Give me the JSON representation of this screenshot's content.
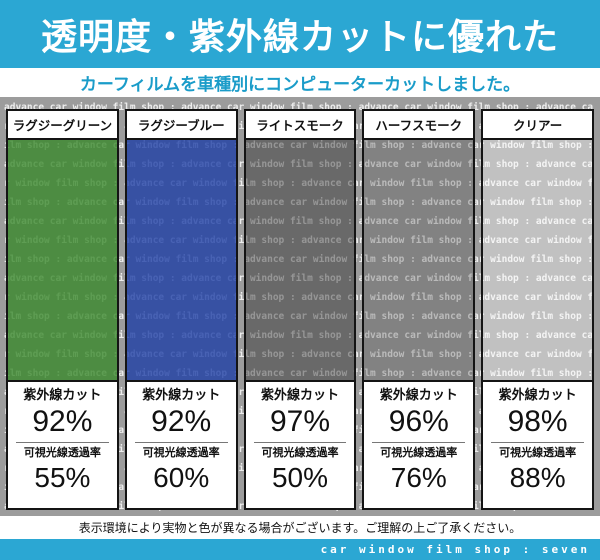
{
  "header": {
    "title": "透明度・紫外線カットに優れた",
    "subtitle": "カーフィルムを車種別にコンピューターカットしました。",
    "bg_color": "#2BA7D3",
    "subtitle_color": "#1A9CC9"
  },
  "background": {
    "pattern_text": "advance car window film shop : ",
    "base_color": "#9C9C9C",
    "text_color": "#EDEDED"
  },
  "products": [
    {
      "name": "ラグジーグリーン",
      "uv_label": "紫外線カット",
      "uv_value": "92%",
      "vlt_label": "可視光線透過率",
      "vlt_value": "55%",
      "tint": "#3A882CCC"
    },
    {
      "name": "ラグジーブルー",
      "uv_label": "紫外線カット",
      "uv_value": "92%",
      "vlt_label": "可視光線透過率",
      "vlt_value": "60%",
      "tint": "#1E3EA5CC"
    },
    {
      "name": "ライトスモーク",
      "uv_label": "紫外線カット",
      "uv_value": "97%",
      "vlt_label": "可視光線透過率",
      "vlt_value": "50%",
      "tint": "#2D2D2D73"
    },
    {
      "name": "ハーフスモーク",
      "uv_label": "紫外線カット",
      "uv_value": "96%",
      "vlt_label": "可視光線透過率",
      "vlt_value": "76%",
      "tint": "#4646464D"
    },
    {
      "name": "クリアー",
      "uv_label": "紫外線カット",
      "uv_value": "98%",
      "vlt_label": "可視光線透過率",
      "vlt_value": "88%",
      "tint": "#FFFFFF61"
    }
  ],
  "footer": {
    "disclaimer": "表示環境により実物と色が異なる場合がございます。ご理解の上ご了承ください。",
    "brand": "car window film shop : seven"
  }
}
